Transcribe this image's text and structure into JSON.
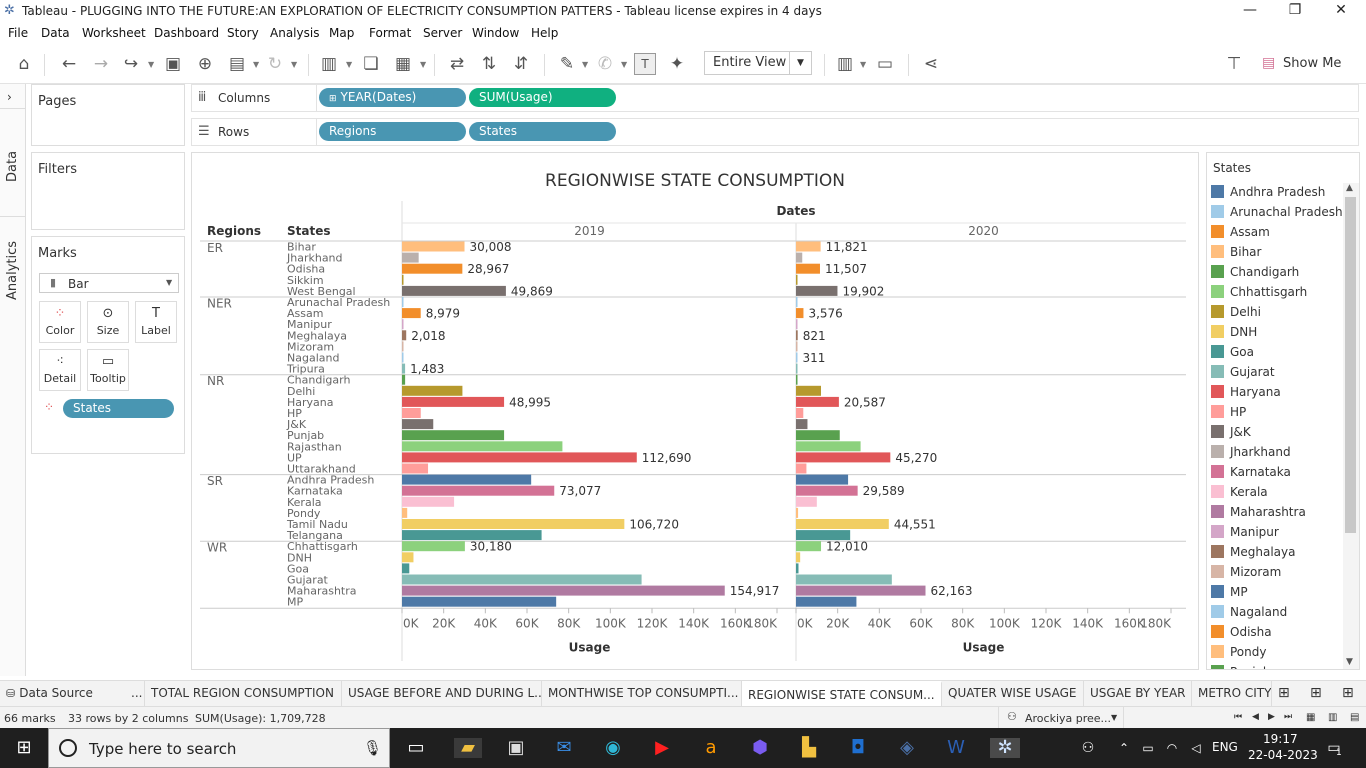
{
  "window": {
    "title": "Tableau - PLUGGING INTO THE FUTURE:AN EXPLORATION OF ELECTRICITY CONSUMPTION PATTERS - Tableau license expires in 4 days",
    "icon": "tableau-icon",
    "controls": [
      "minimize-icon",
      "restore-icon",
      "close-icon"
    ]
  },
  "menu": [
    "File",
    "Data",
    "Worksheet",
    "Dashboard",
    "Story",
    "Analysis",
    "Map",
    "Format",
    "Server",
    "Window",
    "Help"
  ],
  "toolbar": {
    "fit_value": "Entire View",
    "show_me": "Show Me"
  },
  "side_tabs": {
    "data": "Data",
    "analytics": "Analytics"
  },
  "panels": {
    "pages": "Pages",
    "filters": "Filters",
    "marks": "Marks",
    "mark_type": "Bar",
    "cards": [
      "Color",
      "Size",
      "Label",
      "Detail",
      "Tooltip"
    ],
    "marks_pill": "States"
  },
  "shelves": {
    "columns_label": "Columns",
    "rows_label": "Rows",
    "columns": [
      "YEAR(Dates)",
      "SUM(Usage)"
    ],
    "rows": [
      "Regions",
      "States"
    ]
  },
  "chart_data": {
    "type": "bar",
    "title": "REGIONWISE STATE CONSUMPTION",
    "column_header": "Dates",
    "row_headers": [
      "Regions",
      "States"
    ],
    "panes": [
      "2019",
      "2020"
    ],
    "xlabel": "Usage",
    "xlim": [
      0,
      180000
    ],
    "xticks": [
      "0K",
      "20K",
      "40K",
      "60K",
      "80K",
      "100K",
      "120K",
      "140K",
      "160K",
      "180K"
    ],
    "regions": [
      {
        "name": "ER",
        "states": [
          {
            "state": "Bihar",
            "v2019": 30008,
            "v2020": 11821,
            "label2019": "30,008",
            "label2020": "11,821"
          },
          {
            "state": "Jharkhand",
            "v2019": 8000,
            "v2020": 3000
          },
          {
            "state": "Odisha",
            "v2019": 28967,
            "v2020": 11507,
            "label2019": "28,967",
            "label2020": "11,507"
          },
          {
            "state": "Sikkim",
            "v2019": 300,
            "v2020": 120
          },
          {
            "state": "West Bengal",
            "v2019": 49869,
            "v2020": 19902,
            "label2019": "49,869",
            "label2020": "19,902"
          }
        ]
      },
      {
        "name": "NER",
        "states": [
          {
            "state": "Arunachal Pradesh",
            "v2019": 400,
            "v2020": 150
          },
          {
            "state": "Assam",
            "v2019": 8979,
            "v2020": 3576,
            "label2019": "8,979",
            "label2020": "3,576"
          },
          {
            "state": "Manipur",
            "v2019": 500,
            "v2020": 200
          },
          {
            "state": "Meghalaya",
            "v2019": 2018,
            "v2020": 821,
            "label2019": "2,018",
            "label2020": "821"
          },
          {
            "state": "Mizoram",
            "v2019": 400,
            "v2020": 150
          },
          {
            "state": "Nagaland",
            "v2019": 500,
            "v2020": 311,
            "label2020": "311"
          },
          {
            "state": "Tripura",
            "v2019": 1483,
            "v2020": 600,
            "label2019": "1,483"
          }
        ]
      },
      {
        "name": "NR",
        "states": [
          {
            "state": "Chandigarh",
            "v2019": 1500,
            "v2020": 600
          },
          {
            "state": "Delhi",
            "v2019": 29000,
            "v2020": 12000
          },
          {
            "state": "Haryana",
            "v2019": 48995,
            "v2020": 20587,
            "label2019": "48,995",
            "label2020": "20,587"
          },
          {
            "state": "HP",
            "v2019": 9000,
            "v2020": 3500
          },
          {
            "state": "J&K",
            "v2019": 15000,
            "v2020": 5500
          },
          {
            "state": "Punjab",
            "v2019": 49000,
            "v2020": 21000
          },
          {
            "state": "Rajasthan",
            "v2019": 77000,
            "v2020": 31000
          },
          {
            "state": "UP",
            "v2019": 112690,
            "v2020": 45270,
            "label2019": "112,690",
            "label2020": "45,270"
          },
          {
            "state": "Uttarakhand",
            "v2019": 12500,
            "v2020": 5000
          }
        ]
      },
      {
        "name": "SR",
        "states": [
          {
            "state": "Andhra Pradesh",
            "v2019": 62000,
            "v2020": 25000
          },
          {
            "state": "Karnataka",
            "v2019": 73077,
            "v2020": 29589,
            "label2019": "73,077",
            "label2020": "29,589"
          },
          {
            "state": "Kerala",
            "v2019": 25000,
            "v2020": 10000
          },
          {
            "state": "Pondy",
            "v2019": 2500,
            "v2020": 1000
          },
          {
            "state": "Tamil Nadu",
            "v2019": 106720,
            "v2020": 44551,
            "label2019": "106,720",
            "label2020": "44,551"
          },
          {
            "state": "Telangana",
            "v2019": 67000,
            "v2020": 26000
          }
        ]
      },
      {
        "name": "WR",
        "states": [
          {
            "state": "Chhattisgarh",
            "v2019": 30180,
            "v2020": 12010,
            "label2019": "30,180",
            "label2020": "12,010"
          },
          {
            "state": "DNH",
            "v2019": 5500,
            "v2020": 2000
          },
          {
            "state": "Goa",
            "v2019": 3500,
            "v2020": 1200
          },
          {
            "state": "Gujarat",
            "v2019": 115000,
            "v2020": 46000
          },
          {
            "state": "Maharashtra",
            "v2019": 154917,
            "v2020": 62163,
            "label2019": "154,917",
            "label2020": "62,163"
          },
          {
            "state": "MP",
            "v2019": 74000,
            "v2020": 29000
          }
        ]
      }
    ]
  },
  "legend": {
    "title": "States",
    "items": [
      {
        "name": "Andhra Pradesh",
        "color": "#4e79a7"
      },
      {
        "name": "Arunachal Pradesh",
        "color": "#a0cbe8"
      },
      {
        "name": "Assam",
        "color": "#f28e2b"
      },
      {
        "name": "Bihar",
        "color": "#ffbe7d"
      },
      {
        "name": "Chandigarh",
        "color": "#59a14f"
      },
      {
        "name": "Chhattisgarh",
        "color": "#8cd17d"
      },
      {
        "name": "Delhi",
        "color": "#b6992d"
      },
      {
        "name": "DNH",
        "color": "#f1ce63"
      },
      {
        "name": "Goa",
        "color": "#499894"
      },
      {
        "name": "Gujarat",
        "color": "#86bcb6"
      },
      {
        "name": "Haryana",
        "color": "#e15759"
      },
      {
        "name": "HP",
        "color": "#ff9d9a"
      },
      {
        "name": "J&K",
        "color": "#79706e"
      },
      {
        "name": "Jharkhand",
        "color": "#bab0ac"
      },
      {
        "name": "Karnataka",
        "color": "#d37295"
      },
      {
        "name": "Kerala",
        "color": "#fabfd2"
      },
      {
        "name": "Maharashtra",
        "color": "#b07aa1"
      },
      {
        "name": "Manipur",
        "color": "#d4a6c8"
      },
      {
        "name": "Meghalaya",
        "color": "#9d7660"
      },
      {
        "name": "Mizoram",
        "color": "#d7b5a6"
      },
      {
        "name": "MP",
        "color": "#4e79a7"
      },
      {
        "name": "Nagaland",
        "color": "#a0cbe8"
      },
      {
        "name": "Odisha",
        "color": "#f28e2b"
      },
      {
        "name": "Pondy",
        "color": "#ffbe7d"
      },
      {
        "name": "Punjab",
        "color": "#59a14f"
      }
    ],
    "extra_colors": {
      "Punjab": "#59a14f",
      "Rajasthan": "#8cd17d",
      "Sikkim": "#b6992d",
      "Tamil Nadu": "#f1ce63",
      "Telangana": "#499894",
      "Tripura": "#86bcb6",
      "UP": "#e15759",
      "Uttarakhand": "#ff9d9a",
      "West Bengal": "#79706e"
    }
  },
  "sheet_tabs": [
    "Data Source",
    "...",
    "TOTAL REGION CONSUMPTION",
    "USAGE BEFORE AND DURING L...",
    "MONTHWISE TOP CONSUMPTI...",
    "REGIONWISE STATE CONSUM...",
    "QUATER WISE USAGE",
    "USGAE BY YEAR",
    "METRO CITY"
  ],
  "status": {
    "marks": "66 marks",
    "rows": "33 rows by 2 columns",
    "sum": "SUM(Usage): 1,709,728",
    "user": "Arockiya pree..."
  },
  "taskbar": {
    "search_placeholder": "Type here to search",
    "lang": "ENG",
    "time": "19:17",
    "date": "22-04-2023",
    "notif": "1"
  }
}
